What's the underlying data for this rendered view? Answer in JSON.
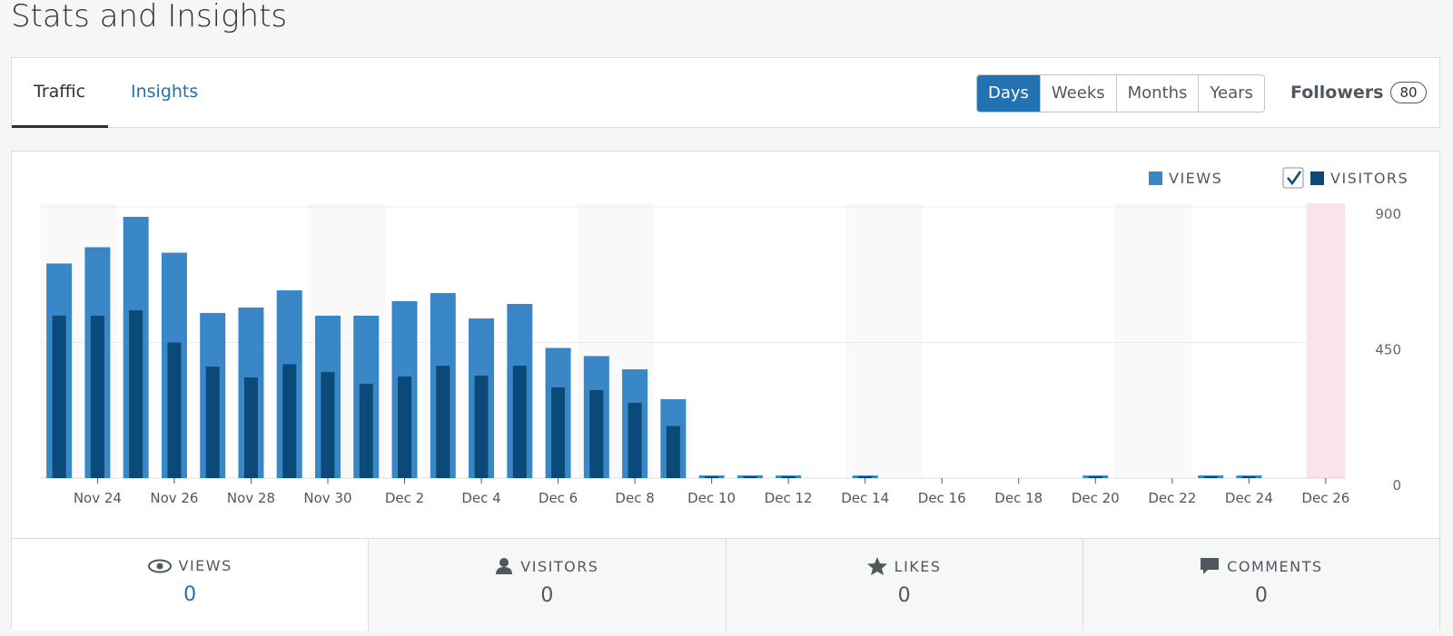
{
  "header": {
    "title": "Stats and Insights"
  },
  "tabs": [
    "Traffic",
    "Insights"
  ],
  "periods": [
    "Days",
    "Weeks",
    "Months",
    "Years"
  ],
  "followers": {
    "label": "Followers",
    "count": "80"
  },
  "chart_data": {
    "type": "bar",
    "categories": [
      null,
      "Nov 24",
      null,
      "Nov 26",
      null,
      "Nov 28",
      null,
      "Nov 30",
      null,
      "Dec 2",
      null,
      "Dec 4",
      null,
      "Dec 6",
      null,
      "Dec 8",
      null,
      "Dec 10",
      null,
      "Dec 12",
      null,
      "Dec 14",
      null,
      "Dec 16",
      null,
      "Dec 18",
      null,
      "Dec 20",
      null,
      "Dec 22",
      null,
      "Dec 24",
      null,
      "Dec 26"
    ],
    "series": [
      {
        "name": "VIEWS",
        "color": "#3a87c8",
        "values": [
          712,
          766,
          867,
          748,
          548,
          566,
          623,
          539,
          539,
          587,
          614,
          530,
          578,
          432,
          405,
          361,
          262,
          9,
          9,
          9,
          0,
          9,
          0,
          0,
          0,
          0,
          0,
          9,
          0,
          0,
          9,
          9,
          0,
          0
        ]
      },
      {
        "name": "VISITORS",
        "color": "#0b4a78",
        "values": [
          539,
          539,
          557,
          450,
          370,
          334,
          378,
          352,
          313,
          337,
          373,
          340,
          373,
          301,
          292,
          250,
          173,
          6,
          6,
          6,
          0,
          6,
          0,
          0,
          0,
          0,
          0,
          6,
          0,
          0,
          6,
          6,
          0,
          0
        ]
      }
    ],
    "ylim": [
      0,
      900
    ],
    "yticks": [
      0,
      450,
      900
    ],
    "grid": true
  },
  "summary": [
    {
      "label": "VIEWS",
      "value": "0"
    },
    {
      "label": "VISITORS",
      "value": "0"
    },
    {
      "label": "LIKES",
      "value": "0"
    },
    {
      "label": "COMMENTS",
      "value": "0"
    }
  ]
}
